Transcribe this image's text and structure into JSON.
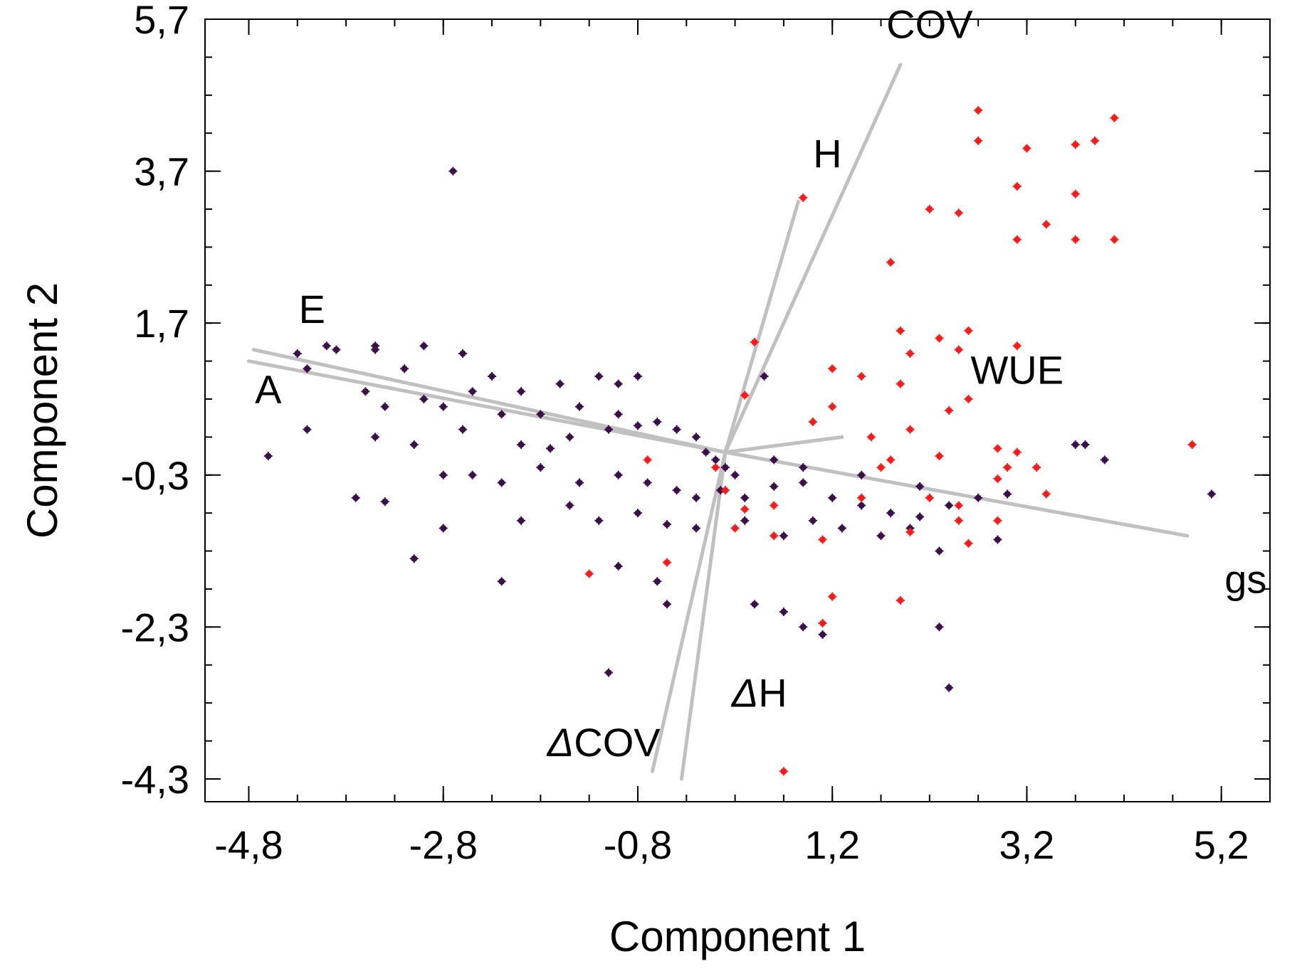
{
  "chart_data": {
    "type": "scatter",
    "title": "",
    "xlabel": "Component 1",
    "ylabel": "Component 2",
    "xlim": [
      -4.8,
      5.2
    ],
    "ylim": [
      -4.3,
      5.7
    ],
    "xticks": [
      "-4,8",
      "-2,8",
      "-0,8",
      "1,2",
      "3,2",
      "5,2"
    ],
    "xtick_values": [
      -4.8,
      -2.8,
      -0.8,
      1.2,
      3.2,
      5.2
    ],
    "yticks": [
      "5,7",
      "3,7",
      "1,7",
      "-0,3",
      "-2,3",
      "-4,3"
    ],
    "ytick_values": [
      5.7,
      3.7,
      1.7,
      -0.3,
      -2.3,
      -4.3
    ],
    "grid": false,
    "colors": {
      "group_dark": "#3a0f4a",
      "group_red": "#ff1a1a",
      "loadings": "#c0c0c0",
      "axes": "#000000"
    },
    "loadings": [
      {
        "name": "COV",
        "label": "COV",
        "x": 1.9,
        "y": 5.1
      },
      {
        "name": "H",
        "label": "H",
        "x": 0.85,
        "y": 3.3
      },
      {
        "name": "E",
        "label": "E",
        "x": -4.75,
        "y": 1.35
      },
      {
        "name": "A",
        "label": "A",
        "x": -4.8,
        "y": 1.2
      },
      {
        "name": "WUE",
        "label": "WUE",
        "x": 1.3,
        "y": 0.2
      },
      {
        "name": "gs",
        "label": "gs",
        "x": 4.85,
        "y": -1.1
      },
      {
        "name": "dCOV",
        "label": "COV",
        "x": -0.65,
        "y": -4.2
      },
      {
        "name": "dH",
        "label": "H",
        "x": -0.35,
        "y": -4.3
      }
    ],
    "series": [
      {
        "name": "",
        "color": "#3a0f4a",
        "points": [
          [
            -4.0,
            1.4
          ],
          [
            -3.9,
            1.35
          ],
          [
            -3.5,
            1.4
          ],
          [
            -3.5,
            1.35
          ],
          [
            -3.2,
            1.1
          ],
          [
            -3.0,
            1.4
          ],
          [
            -2.6,
            1.3
          ],
          [
            -2.3,
            1.0
          ],
          [
            -4.3,
            1.3
          ],
          [
            -4.2,
            1.1
          ],
          [
            -3.6,
            0.8
          ],
          [
            -3.4,
            0.6
          ],
          [
            -3.0,
            0.7
          ],
          [
            -2.5,
            0.8
          ],
          [
            -2.0,
            0.8
          ],
          [
            -1.6,
            0.9
          ],
          [
            -1.2,
            1.0
          ],
          [
            -1.0,
            0.9
          ],
          [
            -0.8,
            1.0
          ],
          [
            -2.8,
            0.6
          ],
          [
            -2.2,
            0.5
          ],
          [
            -1.8,
            0.5
          ],
          [
            -1.4,
            0.6
          ],
          [
            -1.0,
            0.5
          ],
          [
            -0.6,
            0.4
          ],
          [
            -4.6,
            -0.05
          ],
          [
            -4.2,
            0.3
          ],
          [
            -3.5,
            0.2
          ],
          [
            -3.1,
            0.1
          ],
          [
            -2.6,
            0.3
          ],
          [
            -2.0,
            0.1
          ],
          [
            -1.5,
            0.2
          ],
          [
            -1.1,
            0.3
          ],
          [
            -0.8,
            0.35
          ],
          [
            -0.4,
            0.3
          ],
          [
            -0.2,
            0.2
          ],
          [
            -0.1,
            0.0
          ],
          [
            0.0,
            -0.1
          ],
          [
            0.1,
            -0.2
          ],
          [
            0.2,
            -0.3
          ],
          [
            -2.8,
            -0.3
          ],
          [
            -2.5,
            -0.3
          ],
          [
            -2.2,
            -0.4
          ],
          [
            -1.8,
            -0.2
          ],
          [
            -1.4,
            -0.4
          ],
          [
            -1.0,
            -0.3
          ],
          [
            -0.7,
            -0.4
          ],
          [
            -0.4,
            -0.5
          ],
          [
            -0.2,
            -0.6
          ],
          [
            0.05,
            -0.5
          ],
          [
            0.3,
            -0.6
          ],
          [
            0.6,
            -0.45
          ],
          [
            0.9,
            -0.4
          ],
          [
            1.2,
            -0.6
          ],
          [
            1.5,
            -0.7
          ],
          [
            1.8,
            -0.8
          ],
          [
            2.1,
            -0.85
          ],
          [
            2.4,
            -0.7
          ],
          [
            2.7,
            -0.6
          ],
          [
            3.0,
            -0.55
          ],
          [
            -3.7,
            -0.6
          ],
          [
            -3.4,
            -0.65
          ],
          [
            -2.8,
            -1.0
          ],
          [
            -2.0,
            -0.9
          ],
          [
            -1.5,
            -0.7
          ],
          [
            -1.2,
            -0.9
          ],
          [
            -0.8,
            -0.8
          ],
          [
            -0.5,
            -0.95
          ],
          [
            -0.2,
            -1.0
          ],
          [
            0.3,
            -0.9
          ],
          [
            0.7,
            -1.1
          ],
          [
            1.0,
            -0.9
          ],
          [
            1.3,
            -1.0
          ],
          [
            1.7,
            -1.1
          ],
          [
            2.0,
            -1.0
          ],
          [
            2.3,
            -1.3
          ],
          [
            2.9,
            -1.15
          ],
          [
            -3.1,
            -1.4
          ],
          [
            -2.2,
            -1.7
          ],
          [
            -1.0,
            -1.5
          ],
          [
            -0.6,
            -1.7
          ],
          [
            -0.5,
            -2.0
          ],
          [
            0.4,
            -2.0
          ],
          [
            0.7,
            -2.1
          ],
          [
            0.9,
            -2.3
          ],
          [
            1.1,
            -2.4
          ],
          [
            2.3,
            -2.3
          ],
          [
            2.4,
            -3.1
          ],
          [
            -1.1,
            -2.9
          ],
          [
            -2.7,
            3.7
          ],
          [
            0.5,
            1.0
          ],
          [
            3.7,
            0.1
          ],
          [
            3.8,
            0.1
          ],
          [
            4.0,
            -0.1
          ],
          [
            5.1,
            -0.55
          ],
          [
            2.1,
            -0.45
          ],
          [
            1.5,
            -0.3
          ],
          [
            0.9,
            -0.2
          ],
          [
            0.6,
            -0.1
          ],
          [
            -1.7,
            0.05
          ]
        ]
      },
      {
        "name": "",
        "color": "#ff1a1a",
        "points": [
          [
            2.7,
            4.5
          ],
          [
            2.7,
            4.1
          ],
          [
            4.1,
            4.4
          ],
          [
            3.9,
            4.1
          ],
          [
            3.7,
            4.05
          ],
          [
            3.2,
            4.0
          ],
          [
            3.1,
            3.5
          ],
          [
            3.7,
            3.4
          ],
          [
            3.4,
            3.0
          ],
          [
            4.1,
            2.8
          ],
          [
            3.7,
            2.8
          ],
          [
            3.1,
            2.8
          ],
          [
            2.2,
            3.2
          ],
          [
            2.5,
            3.15
          ],
          [
            0.9,
            3.35
          ],
          [
            1.8,
            2.5
          ],
          [
            1.9,
            1.6
          ],
          [
            2.3,
            1.5
          ],
          [
            2.6,
            1.6
          ],
          [
            3.1,
            1.4
          ],
          [
            2.0,
            1.3
          ],
          [
            2.5,
            1.35
          ],
          [
            0.4,
            1.45
          ],
          [
            1.5,
            1.0
          ],
          [
            1.9,
            0.9
          ],
          [
            2.6,
            0.7
          ],
          [
            2.4,
            0.55
          ],
          [
            2.0,
            0.3
          ],
          [
            1.6,
            0.2
          ],
          [
            1.2,
            1.1
          ],
          [
            1.2,
            0.6
          ],
          [
            1.0,
            0.4
          ],
          [
            0.3,
            0.75
          ],
          [
            -0.7,
            -0.1
          ],
          [
            0.0,
            -0.2
          ],
          [
            0.1,
            -0.5
          ],
          [
            1.8,
            -0.1
          ],
          [
            2.3,
            -0.05
          ],
          [
            2.9,
            0.05
          ],
          [
            3.1,
            0.0
          ],
          [
            3.3,
            -0.2
          ],
          [
            2.9,
            -0.35
          ],
          [
            2.2,
            -0.6
          ],
          [
            1.5,
            -0.6
          ],
          [
            0.6,
            -0.7
          ],
          [
            0.3,
            -0.75
          ],
          [
            0.2,
            -1.0
          ],
          [
            0.6,
            -1.1
          ],
          [
            1.1,
            -1.15
          ],
          [
            2.0,
            -1.05
          ],
          [
            2.6,
            -1.2
          ],
          [
            3.4,
            -0.55
          ],
          [
            4.9,
            0.1
          ],
          [
            2.5,
            -0.7
          ],
          [
            -0.5,
            -1.45
          ],
          [
            -1.3,
            -1.6
          ],
          [
            1.2,
            -1.9
          ],
          [
            1.9,
            -1.95
          ],
          [
            1.1,
            -2.25
          ],
          [
            0.7,
            -4.2
          ],
          [
            2.9,
            -0.9
          ],
          [
            3.0,
            -0.2
          ],
          [
            2.5,
            -0.9
          ],
          [
            1.7,
            -0.2
          ]
        ]
      }
    ]
  }
}
